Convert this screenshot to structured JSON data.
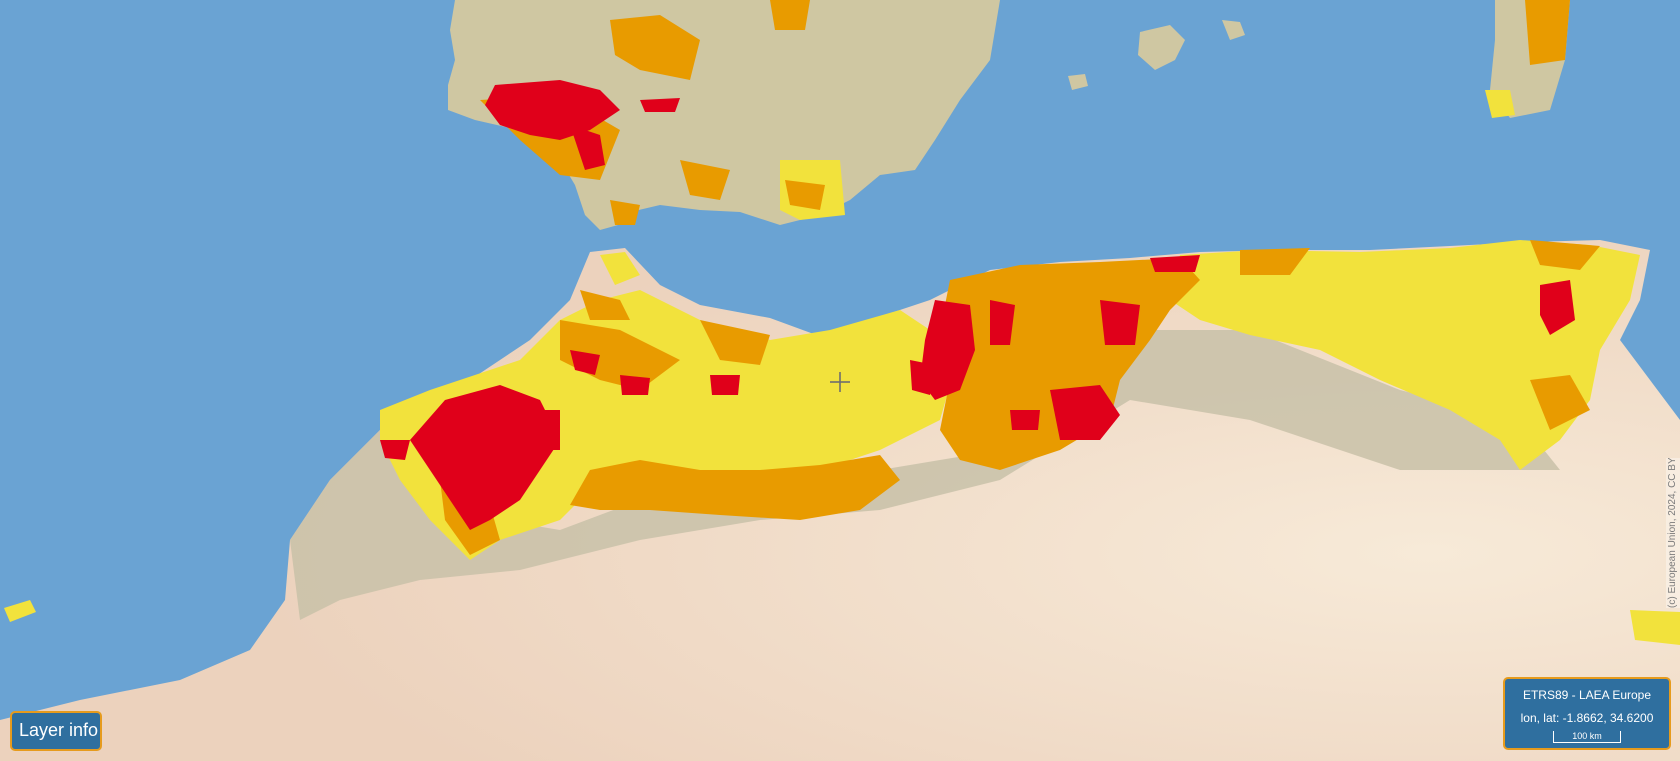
{
  "layer_info": {
    "label": "Layer info"
  },
  "coordinates": {
    "projection": "ETRS89 - LAEA Europe",
    "lonlat": "lon, lat: -1.8662, 34.6200",
    "scale_label": "100 km"
  },
  "attribution": {
    "text": "(c) European Union, 2024, CC BY"
  },
  "legend_colors": {
    "sea": "#6aa3d3",
    "land": "#d6c7a4",
    "desert": "#f1d9c4",
    "class_low": "#f2e23c",
    "class_medium": "#e89b00",
    "class_high": "#e0001a"
  },
  "icons": {
    "crosshair": "crosshair-icon"
  }
}
